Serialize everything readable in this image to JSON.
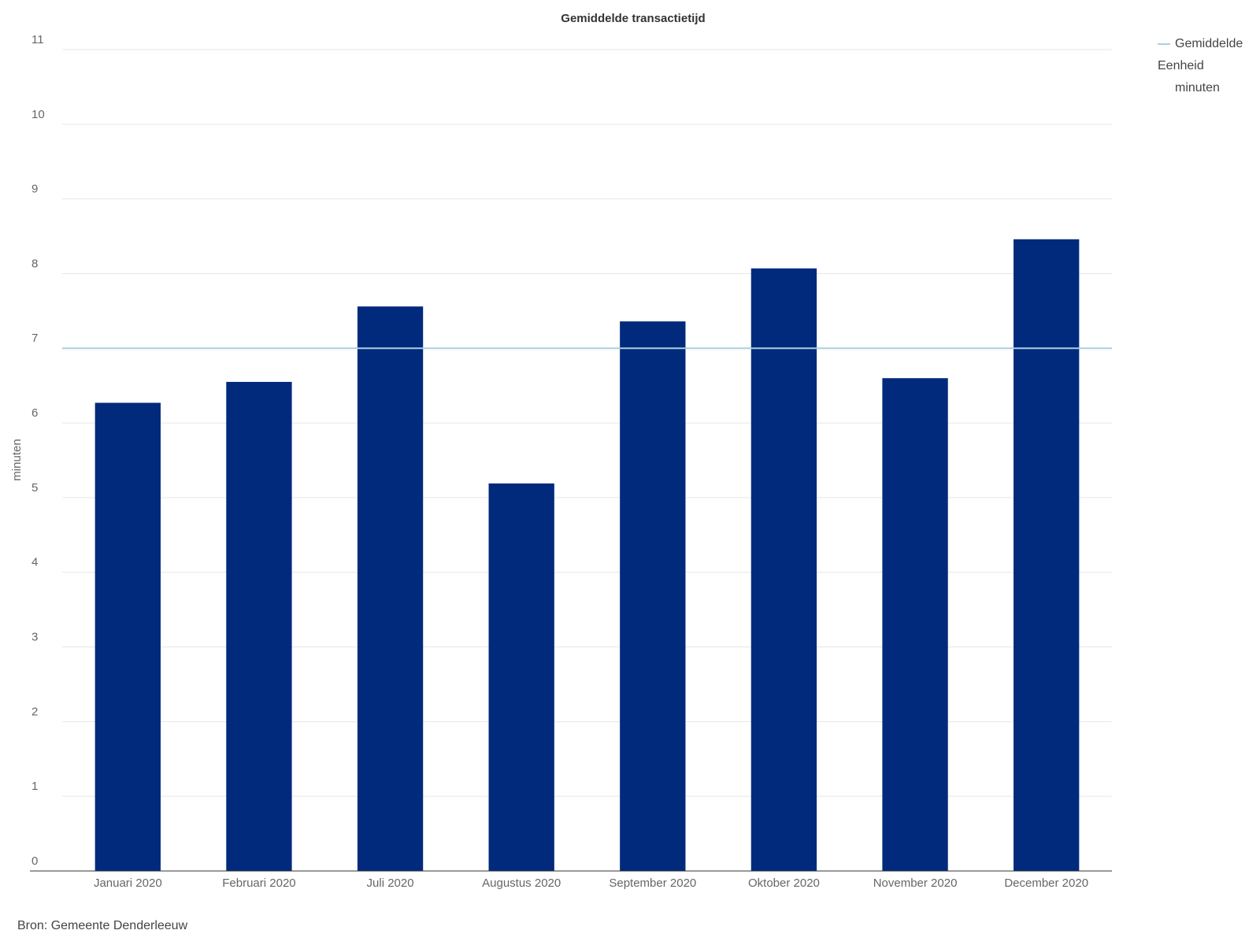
{
  "chart_data": {
    "type": "bar",
    "title": "Gemiddelde transactietijd",
    "categories": [
      "Januari 2020",
      "Februari 2020",
      "Juli 2020",
      "Augustus 2020",
      "September 2020",
      "Oktober 2020",
      "November 2020",
      "December 2020"
    ],
    "values": [
      6.27,
      6.55,
      7.56,
      5.19,
      7.36,
      8.07,
      6.6,
      8.46
    ],
    "color": "#012a7c",
    "reference_line": {
      "name": "Gemiddelde",
      "value": 7,
      "color": "#a8d0e0"
    },
    "legend_unit_title": "Eenheid",
    "legend_unit": "minuten",
    "legend_position": "top-right",
    "y_label": "minuten",
    "ylim": [
      0,
      11
    ],
    "yticks": [
      0,
      1,
      2,
      3,
      4,
      5,
      6,
      7,
      8,
      9,
      10,
      11
    ],
    "grid": true,
    "source": "Bron: Gemeente Denderleeuw"
  }
}
